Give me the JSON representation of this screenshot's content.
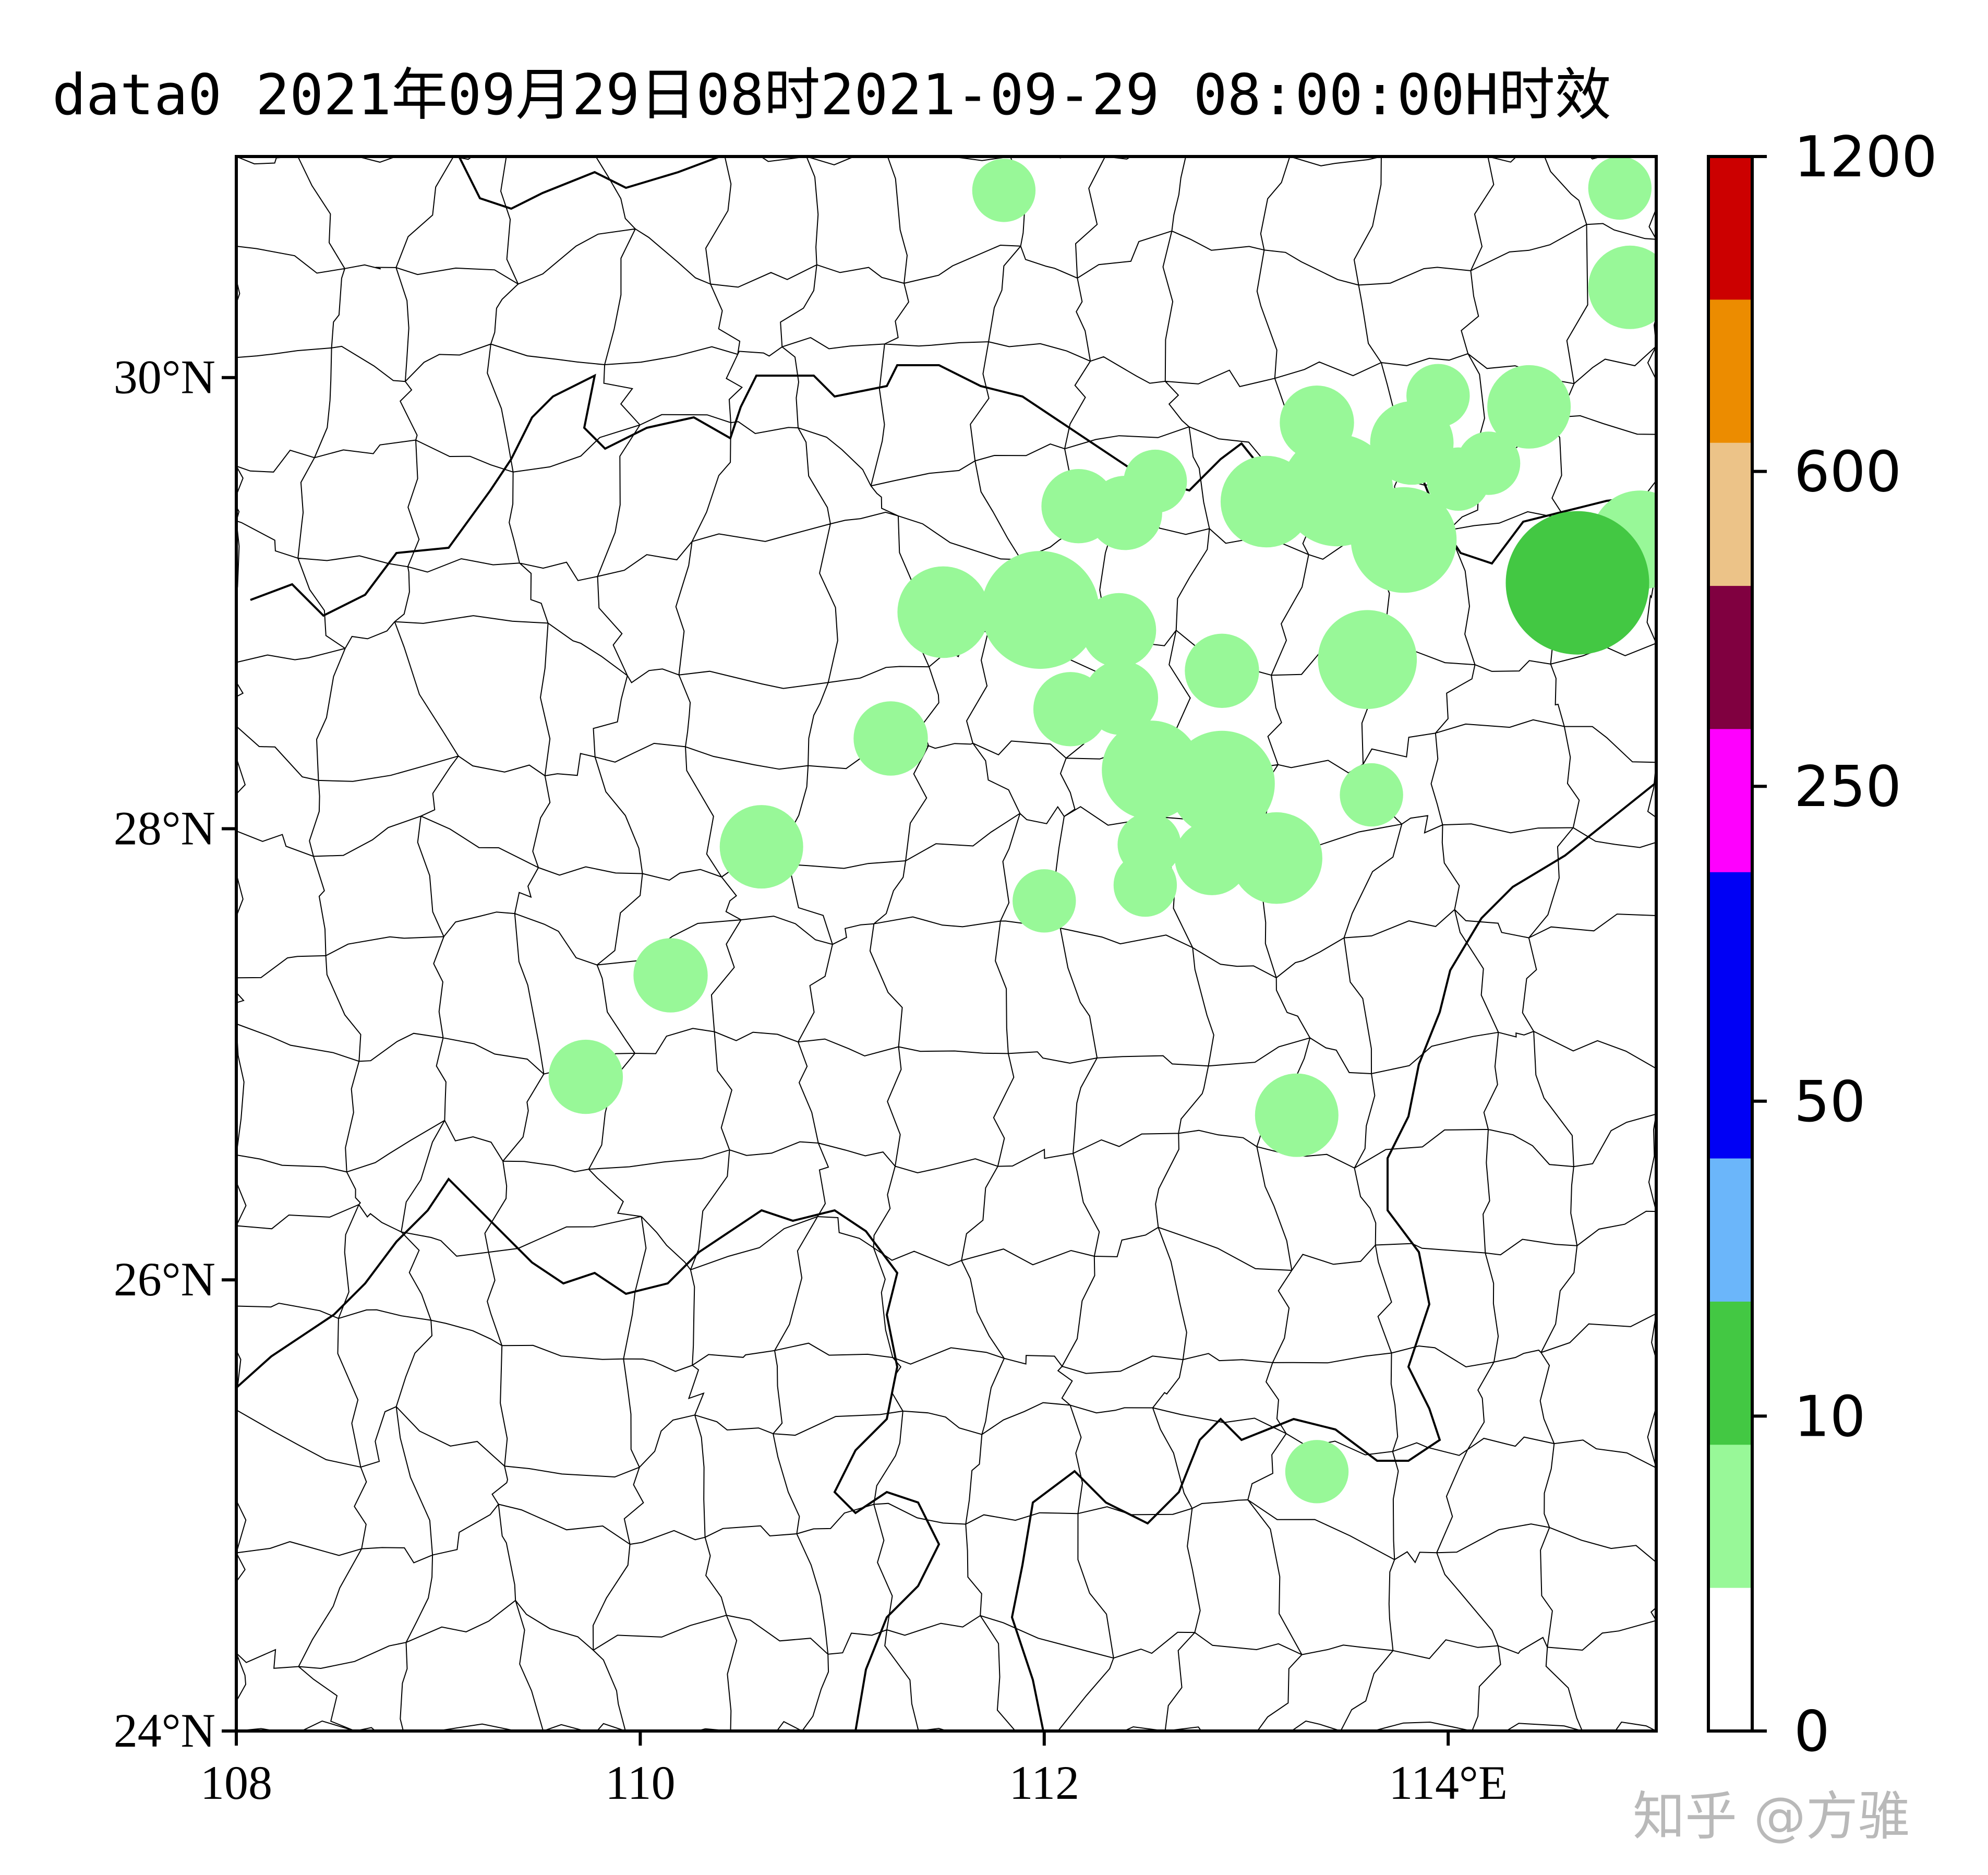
{
  "title": "data0 2021年09月29日08时2021-09-29 08:00:00H时效",
  "watermark": "知乎 @方骓",
  "map": {
    "lon_range": [
      108,
      115.03
    ],
    "lat_range": [
      24,
      30.98
    ],
    "lon_ticks": [
      108,
      110,
      112,
      114
    ],
    "lon_tick_labels": [
      "108",
      "110",
      "112",
      "114°E"
    ],
    "lat_ticks": [
      24,
      26,
      28,
      30
    ],
    "lat_tick_labels": [
      "24°N",
      "26°N",
      "28°N",
      "30°N"
    ]
  },
  "colorbar": {
    "levels": [
      "0",
      "10",
      "50",
      "250",
      "600",
      "1200"
    ],
    "colors": [
      "#ffffff",
      "#98f898",
      "#43c843",
      "#6bb6fa",
      "#0000f5",
      "#0000f5",
      "#fe00fe",
      "#800040",
      "#ecc388",
      "#ec8c00",
      "#cc0000"
    ]
  },
  "stations": [
    {
      "lon": 111.8,
      "lat": 30.83,
      "value": 2
    },
    {
      "lon": 114.85,
      "lat": 30.84,
      "value": 2
    },
    {
      "lon": 114.9,
      "lat": 30.4,
      "value": 4
    },
    {
      "lon": 114.4,
      "lat": 29.87,
      "value": 4
    },
    {
      "lon": 113.95,
      "lat": 29.92,
      "value": 2
    },
    {
      "lon": 113.35,
      "lat": 29.8,
      "value": 3
    },
    {
      "lon": 113.82,
      "lat": 29.71,
      "value": 4
    },
    {
      "lon": 114.2,
      "lat": 29.62,
      "value": 2
    },
    {
      "lon": 114.05,
      "lat": 29.55,
      "value": 2
    },
    {
      "lon": 113.45,
      "lat": 29.5,
      "value": 8
    },
    {
      "lon": 113.1,
      "lat": 29.45,
      "value": 5
    },
    {
      "lon": 113.78,
      "lat": 29.28,
      "value": 7
    },
    {
      "lon": 114.95,
      "lat": 29.28,
      "value": 6
    },
    {
      "lon": 114.64,
      "lat": 29.09,
      "value": 14
    },
    {
      "lon": 112.55,
      "lat": 29.54,
      "value": 2
    },
    {
      "lon": 112.17,
      "lat": 29.43,
      "value": 3
    },
    {
      "lon": 112.4,
      "lat": 29.4,
      "value": 3
    },
    {
      "lon": 111.98,
      "lat": 28.97,
      "value": 9
    },
    {
      "lon": 111.5,
      "lat": 28.96,
      "value": 5
    },
    {
      "lon": 112.37,
      "lat": 28.88,
      "value": 3
    },
    {
      "lon": 113.6,
      "lat": 28.75,
      "value": 6
    },
    {
      "lon": 112.88,
      "lat": 28.7,
      "value": 3
    },
    {
      "lon": 112.38,
      "lat": 28.58,
      "value": 3
    },
    {
      "lon": 112.13,
      "lat": 28.53,
      "value": 3
    },
    {
      "lon": 111.24,
      "lat": 28.4,
      "value": 3
    },
    {
      "lon": 112.53,
      "lat": 28.26,
      "value": 6
    },
    {
      "lon": 112.88,
      "lat": 28.2,
      "value": 7
    },
    {
      "lon": 113.62,
      "lat": 28.15,
      "value": 2
    },
    {
      "lon": 112.52,
      "lat": 27.93,
      "value": 2
    },
    {
      "lon": 112.83,
      "lat": 27.87,
      "value": 3
    },
    {
      "lon": 113.15,
      "lat": 27.87,
      "value": 5
    },
    {
      "lon": 110.6,
      "lat": 27.92,
      "value": 4
    },
    {
      "lon": 112.5,
      "lat": 27.75,
      "value": 2
    },
    {
      "lon": 112.0,
      "lat": 27.68,
      "value": 2
    },
    {
      "lon": 110.15,
      "lat": 27.35,
      "value": 3
    },
    {
      "lon": 109.73,
      "lat": 26.9,
      "value": 3
    },
    {
      "lon": 113.25,
      "lat": 26.73,
      "value": 4
    },
    {
      "lon": 113.35,
      "lat": 25.15,
      "value": 2
    }
  ]
}
